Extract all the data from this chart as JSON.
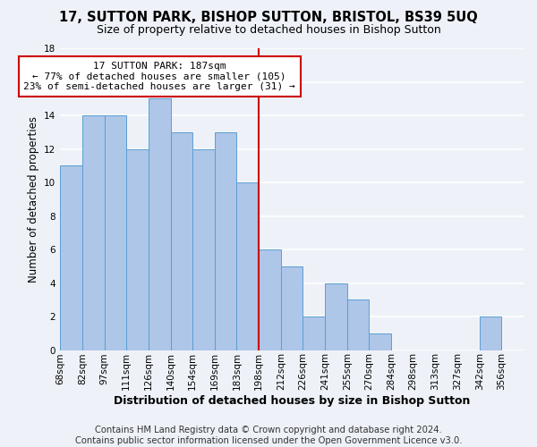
{
  "title": "17, SUTTON PARK, BISHOP SUTTON, BRISTOL, BS39 5UQ",
  "subtitle": "Size of property relative to detached houses in Bishop Sutton",
  "xlabel": "Distribution of detached houses by size in Bishop Sutton",
  "ylabel": "Number of detached properties",
  "footer_line1": "Contains HM Land Registry data © Crown copyright and database right 2024.",
  "footer_line2": "Contains public sector information licensed under the Open Government Licence v3.0.",
  "bin_labels": [
    "68sqm",
    "82sqm",
    "97sqm",
    "111sqm",
    "126sqm",
    "140sqm",
    "154sqm",
    "169sqm",
    "183sqm",
    "198sqm",
    "212sqm",
    "226sqm",
    "241sqm",
    "255sqm",
    "270sqm",
    "284sqm",
    "298sqm",
    "313sqm",
    "327sqm",
    "342sqm",
    "356sqm"
  ],
  "bar_heights": [
    11,
    14,
    14,
    12,
    15,
    13,
    12,
    13,
    10,
    6,
    5,
    2,
    4,
    3,
    1,
    0,
    0,
    0,
    0,
    2,
    0
  ],
  "bar_color": "#aec6e8",
  "bar_edge_color": "#5a9fd4",
  "annotation_line_x_label": "183sqm",
  "annotation_line_color": "#cc0000",
  "annotation_box_text_line1": "17 SUTTON PARK: 187sqm",
  "annotation_box_text_line2": "← 77% of detached houses are smaller (105)",
  "annotation_box_text_line3": "23% of semi-detached houses are larger (31) →",
  "annotation_box_facecolor": "#ffffff",
  "annotation_box_edgecolor": "#cc0000",
  "ylim": [
    0,
    18
  ],
  "yticks": [
    0,
    2,
    4,
    6,
    8,
    10,
    12,
    14,
    16,
    18
  ],
  "background_color": "#eef2f8",
  "grid_color": "#ffffff",
  "title_fontsize": 10.5,
  "subtitle_fontsize": 9,
  "ylabel_fontsize": 8.5,
  "xlabel_fontsize": 9,
  "footer_fontsize": 7.2,
  "tick_fontsize": 7.5
}
